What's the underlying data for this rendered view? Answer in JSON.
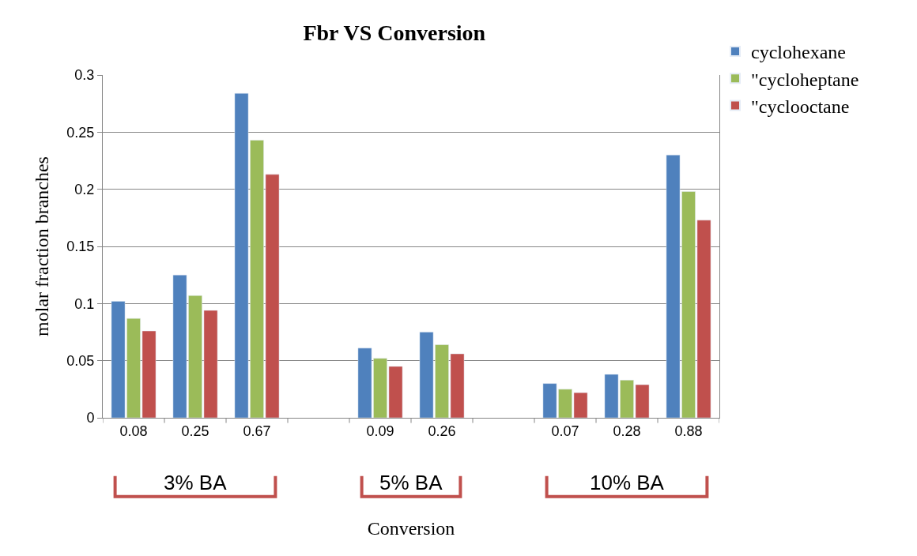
{
  "chart_data": {
    "type": "bar",
    "title": "Fbr VS Conversion",
    "xlabel": "Conversion",
    "ylabel": "molar fraction branches",
    "categories": [
      "0.08",
      "0.25",
      "0.67",
      null,
      "0.09",
      "0.26",
      null,
      "0.07",
      "0.28",
      "0.88"
    ],
    "series": [
      {
        "name": "cyclohexane",
        "color": "#4f81bd",
        "values": [
          0.102,
          0.125,
          0.284,
          null,
          0.061,
          0.075,
          null,
          0.03,
          0.038,
          0.23
        ]
      },
      {
        "name": "\"cycloheptane",
        "color": "#9bbb59",
        "values": [
          0.087,
          0.107,
          0.243,
          null,
          0.052,
          0.064,
          null,
          0.025,
          0.033,
          0.198
        ]
      },
      {
        "name": "\"cyclooctane",
        "color": "#c0504d",
        "values": [
          0.076,
          0.094,
          0.213,
          null,
          0.045,
          0.056,
          null,
          0.022,
          0.029,
          0.173
        ]
      }
    ],
    "ylim": [
      0,
      0.3
    ],
    "yticks": [
      0,
      0.05,
      0.1,
      0.15,
      0.2,
      0.25,
      0.3
    ],
    "grid": "y",
    "legend": "top right",
    "annotations": [
      "3% BA",
      "5% BA",
      "10% BA"
    ]
  }
}
